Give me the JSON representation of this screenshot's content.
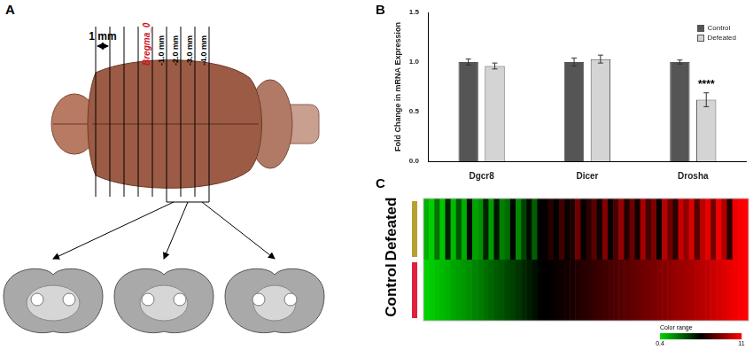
{
  "diagram": {
    "panel": "A",
    "scale_bar": "1 mm",
    "reference": "Bregma_0",
    "marks": [
      "-1.0 mm",
      "-2.0 mm",
      "-3.0 mm",
      "-4.0 mm"
    ]
  },
  "chart_data": [
    {
      "panel": "B",
      "type": "bar",
      "categories": [
        "Dgcr8",
        "Dicer",
        "Drosha"
      ],
      "series": [
        {
          "name": "Control",
          "color": "#555555",
          "values": [
            1.0,
            1.0,
            1.0
          ],
          "errors": [
            0.03,
            0.04,
            0.02
          ]
        },
        {
          "name": "Defeated",
          "color": "#d4d4d4",
          "values": [
            0.96,
            1.03,
            0.62
          ],
          "errors": [
            0.03,
            0.04,
            0.07
          ]
        }
      ],
      "y_label": "Fold Change in mRNA Expression",
      "ylim": [
        0,
        1.5
      ],
      "yticks": [
        {
          "value": 0,
          "label": "0.0"
        },
        {
          "value": 0.5,
          "label": "0.5"
        },
        {
          "value": 1,
          "label": "1.0"
        },
        {
          "value": 1.5,
          "label": "1.5"
        }
      ],
      "legend": "upper right",
      "grid": false,
      "annotations": [
        {
          "text": "****",
          "category": "Drosha",
          "series": "Defeated"
        }
      ]
    },
    {
      "panel": "C",
      "type": "heatmap",
      "series": [
        {
          "name": "Defeated",
          "color": "#b8a030",
          "values": [
            1.2,
            0.5,
            2.8,
            0.7,
            4.9,
            1.0,
            3.5,
            1.3,
            5.5,
            1.6,
            2.0,
            4.8,
            1.8,
            5.2,
            2.5,
            3.0,
            5.6,
            2.2,
            4.0,
            5.4,
            3.3,
            5.7,
            5.8,
            6.5,
            5.7,
            7.0,
            5.9,
            6.3,
            8.0,
            5.8,
            6.6,
            7.5,
            6.0,
            8.4,
            5.9,
            7.2,
            8.8,
            6.4,
            7.9,
            6.1,
            9.2,
            7.1,
            8.3,
            5.9,
            9.5,
            8.0,
            6.6,
            9.8,
            8.7,
            10.2,
            7.4,
            9.6,
            10.5,
            8.1,
            10.8,
            9.3,
            6.5,
            10.6,
            10.9,
            11.0
          ]
        },
        {
          "name": "Control",
          "color": "#e0203c",
          "values": [
            0.4,
            0.6,
            0.8,
            1.0,
            1.2,
            1.5,
            1.7,
            1.9,
            2.1,
            2.4,
            2.6,
            2.9,
            3.1,
            3.4,
            3.6,
            3.9,
            4.1,
            4.4,
            4.7,
            5.0,
            5.3,
            5.6,
            5.7,
            5.8,
            5.9,
            6.0,
            6.1,
            6.2,
            6.4,
            6.5,
            6.6,
            6.8,
            6.9,
            7.0,
            7.2,
            7.3,
            7.4,
            7.6,
            7.7,
            7.8,
            8.0,
            8.1,
            8.2,
            8.4,
            8.5,
            8.6,
            8.8,
            8.9,
            9.0,
            9.2,
            9.4,
            9.5,
            9.7,
            9.9,
            10.1,
            10.3,
            10.5,
            10.7,
            10.9,
            11.0
          ]
        }
      ],
      "colorbar": {
        "label": "Color range",
        "range": [
          0.4,
          11
        ],
        "ticks": [
          0.4,
          11
        ]
      }
    }
  ]
}
